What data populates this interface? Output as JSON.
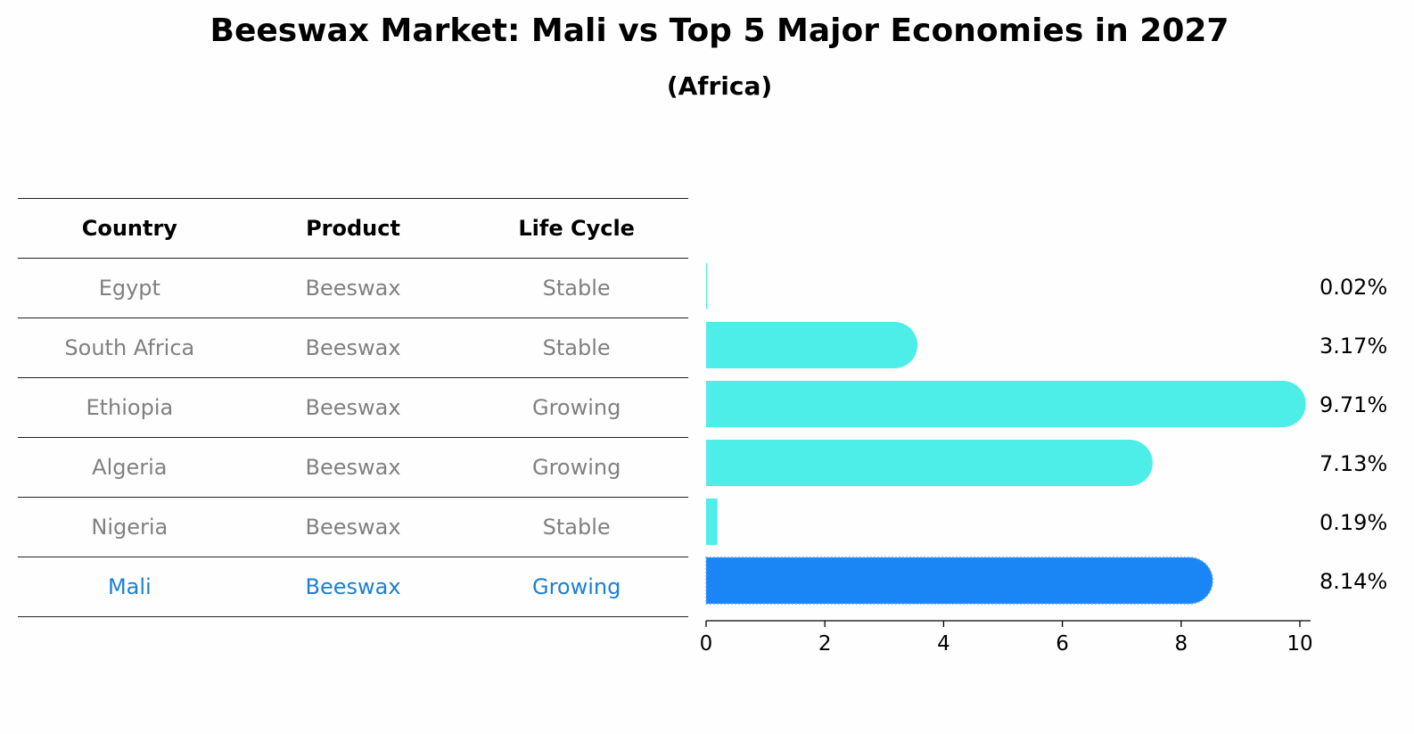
{
  "header": {
    "title": "Beeswax Market: Mali vs Top 5 Major Economies in 2027",
    "subtitle": "(Africa)"
  },
  "table": {
    "columns": [
      "Country",
      "Product",
      "Life Cycle"
    ],
    "rows": [
      {
        "country": "Egypt",
        "product": "Beeswax",
        "life_cycle": "Stable"
      },
      {
        "country": "South Africa",
        "product": "Beeswax",
        "life_cycle": "Stable"
      },
      {
        "country": "Ethiopia",
        "product": "Beeswax",
        "life_cycle": "Growing"
      },
      {
        "country": "Algeria",
        "product": "Beeswax",
        "life_cycle": "Growing"
      },
      {
        "country": "Nigeria",
        "product": "Beeswax",
        "life_cycle": "Stable"
      },
      {
        "country": "Mali",
        "product": "Beeswax",
        "life_cycle": "Growing"
      }
    ]
  },
  "chart_data": {
    "type": "bar",
    "orientation": "horizontal",
    "title": "Beeswax Market: Mali vs Top 5 Major Economies in 2027",
    "subtitle": "(Africa)",
    "categories": [
      "Egypt",
      "South Africa",
      "Ethiopia",
      "Algeria",
      "Nigeria",
      "Mali"
    ],
    "values": [
      0.02,
      3.17,
      9.71,
      7.13,
      0.19,
      8.14
    ],
    "value_labels": [
      "0.02%",
      "3.17%",
      "9.71%",
      "7.13%",
      "0.19%",
      "8.14%"
    ],
    "highlight": "Mali",
    "xlim": [
      0,
      10
    ],
    "xticks": [
      "0",
      "2",
      "4",
      "6",
      "8",
      "10"
    ],
    "xlabel": "",
    "ylabel": "",
    "grid": false
  },
  "colors": {
    "bar": "#4dede8",
    "highlight_bar": "#1a85f5",
    "muted_text": "#808080",
    "highlight_text": "#1a7fd9"
  }
}
